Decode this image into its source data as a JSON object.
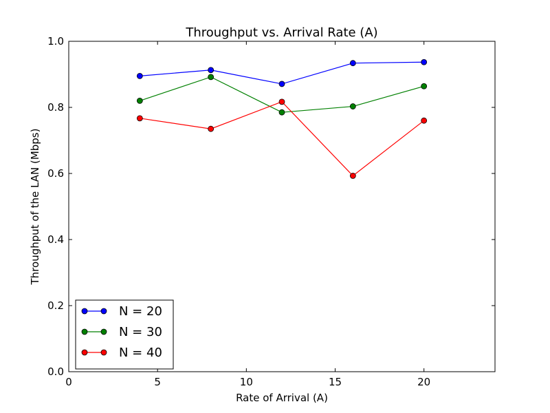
{
  "chart_data": {
    "type": "line",
    "title": "Throughput vs. Arrival Rate (A)",
    "xlabel": "Rate of Arrival (A)",
    "ylabel": "Throughput of the LAN (Mbps)",
    "xlim": [
      0,
      24
    ],
    "ylim": [
      0.0,
      1.0
    ],
    "xticks": [
      0,
      5,
      10,
      15,
      20
    ],
    "xtick_labels": [
      "0",
      "5",
      "10",
      "15",
      "20"
    ],
    "yticks": [
      0.0,
      0.2,
      0.4,
      0.6,
      0.8,
      1.0
    ],
    "ytick_labels": [
      "0.0",
      "0.2",
      "0.4",
      "0.6",
      "0.8",
      "1.0"
    ],
    "grid": false,
    "legend_position": "lower-left",
    "x": [
      4,
      8,
      12,
      16,
      20
    ],
    "series": [
      {
        "name": "N = 20",
        "color": "#0000ff",
        "values": [
          0.895,
          0.913,
          0.871,
          0.934,
          0.937
        ]
      },
      {
        "name": "N = 30",
        "color": "#008000",
        "values": [
          0.82,
          0.892,
          0.785,
          0.803,
          0.864
        ]
      },
      {
        "name": "N = 40",
        "color": "#ff0000",
        "values": [
          0.767,
          0.735,
          0.817,
          0.593,
          0.76
        ]
      }
    ]
  }
}
